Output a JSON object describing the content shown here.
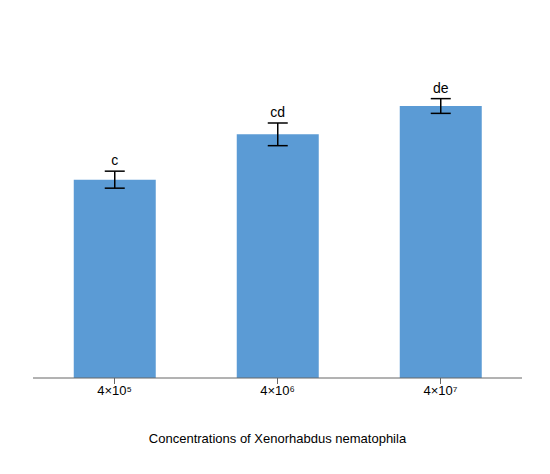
{
  "chart_data": {
    "type": "bar",
    "x_label": "Concentrations of Xenorhabdus nematophila",
    "categories": [
      "4×10⁵",
      "4×10⁶",
      "4×10⁷"
    ],
    "values": [
      3.5,
      4.3,
      4.8
    ],
    "errors": [
      0.15,
      0.2,
      0.13
    ],
    "annotations": [
      "c",
      "cd",
      "de"
    ],
    "color": "#5B9BD5",
    "ylim": [
      0,
      6.0
    ],
    "yticks": [
      0,
      1,
      2,
      3,
      4,
      5,
      6
    ],
    "grid": false,
    "tick_labels": "x"
  }
}
